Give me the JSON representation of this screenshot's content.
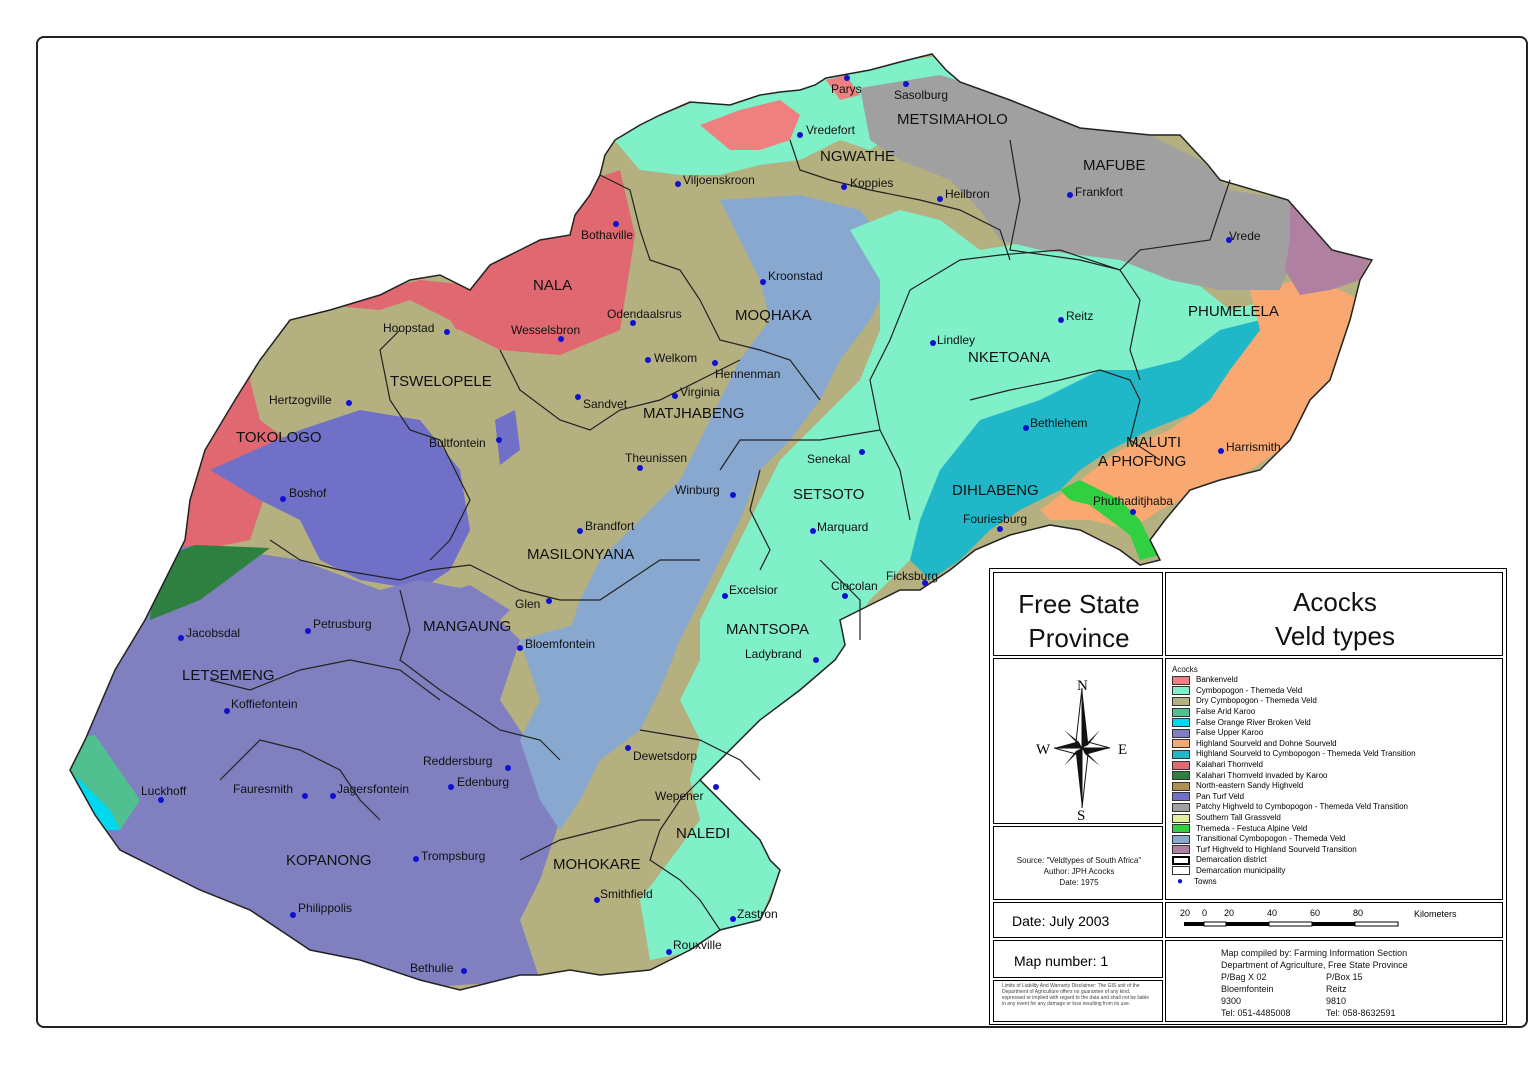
{
  "title": {
    "line1": "Free State",
    "line2": "Province"
  },
  "subtitle": {
    "line1": "Acocks",
    "line2": "Veld types"
  },
  "legend": {
    "heading": "Acocks",
    "items": [
      {
        "label": "Bankenveld",
        "color": "#ee8080"
      },
      {
        "label": "Cymbopogon - Themeda Veld",
        "color": "#80f0c8"
      },
      {
        "label": "Dry Cymbopogon - Themeda Veld",
        "color": "#b4b080"
      },
      {
        "label": "False Arid Karoo",
        "color": "#50c090"
      },
      {
        "label": "False Orange River Broken Veld",
        "color": "#00d8f0"
      },
      {
        "label": "False Upper Karoo",
        "color": "#8080c0"
      },
      {
        "label": "Highland Sourveld and Dohne Sourveld",
        "color": "#f8a870"
      },
      {
        "label": "Highland Sourveld to Cymbopogon - Themeda Veld Transition",
        "color": "#20b8c8"
      },
      {
        "label": "Kalahari Thornveld",
        "color": "#e06870"
      },
      {
        "label": "Kalahari Thornveld invaded by Karoo",
        "color": "#2e8040"
      },
      {
        "label": "North-eastern Sandy Highveld",
        "color": "#b09050"
      },
      {
        "label": "Pan Turf Veld",
        "color": "#7070c8"
      },
      {
        "label": "Patchy Highveld to Cymbopogon - Themeda Veld Transition",
        "color": "#a0a0a0"
      },
      {
        "label": "Southern Tall Grassveld",
        "color": "#e0f0a0"
      },
      {
        "label": "Themeda - Festuca Alpine Veld",
        "color": "#30d040"
      },
      {
        "label": "Transitional Cymbopogon - Themeda Veld",
        "color": "#88a8d0"
      },
      {
        "label": "Turf Highveld to Highland Sourveld Transition",
        "color": "#b080a0"
      }
    ],
    "boundaries": [
      {
        "label": "Demarcation district"
      },
      {
        "label": "Demarcation municipality"
      }
    ],
    "towns_label": "Towns"
  },
  "compass": {
    "n": "N",
    "s": "S",
    "e": "E",
    "w": "W"
  },
  "source": {
    "line1": "Source: \"Veldtypes of South Africa\"",
    "line2": "Author: JPH Acocks",
    "line3": "Date: 1975"
  },
  "scale": {
    "ticks": [
      "20",
      "0",
      "20",
      "40",
      "60",
      "80"
    ],
    "unit": "Kilometers"
  },
  "date_text": "Date: July 2003",
  "map_number_text": "Map number: 1",
  "disclaimer": "Limits of Liability And Warranty Disclaimer: The GIS unit of the Department of Agriculture offers no guarantee of any kind, expressed or implied with regard to the data and shall not be liable in any event for any damage or loss resulting from its use.",
  "compiled": {
    "line1": "Map compiled by:  Farming Information Section",
    "line2": "Department of Agriculture, Free State Province",
    "col1": [
      "P/Bag X 02",
      "Bloemfontein",
      "9300",
      "Tel: 051-4485008"
    ],
    "col2": [
      "P/Box 15",
      "Reitz",
      "9810",
      "Tel: 058-8632591"
    ]
  },
  "municipalities": [
    "METSIMAHOLO",
    "NGWATHE",
    "MAFUBE",
    "NALA",
    "MOQHAKA",
    "PHUMELELA",
    "TSWELOPELE",
    "NKETOANA",
    "MATJHABENG",
    "TOKOLOGO",
    "MALUTI A PHOFUNG",
    "SETSOTO",
    "DIHLABENG",
    "MASILONYANA",
    "MANTSOPA",
    "MANGAUNG",
    "LETSEMENG",
    "KOPANONG",
    "NALEDI",
    "MOHOKARE"
  ],
  "towns": [
    "Parys",
    "Sasolburg",
    "Vredefort",
    "Viljoenskroon",
    "Koppies",
    "Heilbron",
    "Frankfort",
    "Vrede",
    "Bothaville",
    "Kroonstad",
    "Hoopstad",
    "Wesselsbron",
    "Odendaalsrus",
    "Reitz",
    "Lindley",
    "Welkom",
    "Hennenman",
    "Virginia",
    "Sandvet",
    "Hertzogville",
    "Bultfontein",
    "Theunissen",
    "Bethlehem",
    "Harrismith",
    "Senekal",
    "Winburg",
    "Boshof",
    "Brandfort",
    "Marquard",
    "Fouriesburg",
    "Phuthaditjhaba",
    "Ficksburg",
    "Clocolan",
    "Excelsior",
    "Glen",
    "Petrusburg",
    "Jacobsdal",
    "Ladybrand",
    "Koffiefontein",
    "Dewetsdorp",
    "Reddersburg",
    "Edenburg",
    "Luckhoff",
    "Fauresmith",
    "Jagersfontein",
    "Wepener",
    "Trompsburg",
    "Smithfield",
    "Zastron",
    "Philippolis",
    "Rouxville",
    "Bethulie",
    "Bloemfontein"
  ]
}
